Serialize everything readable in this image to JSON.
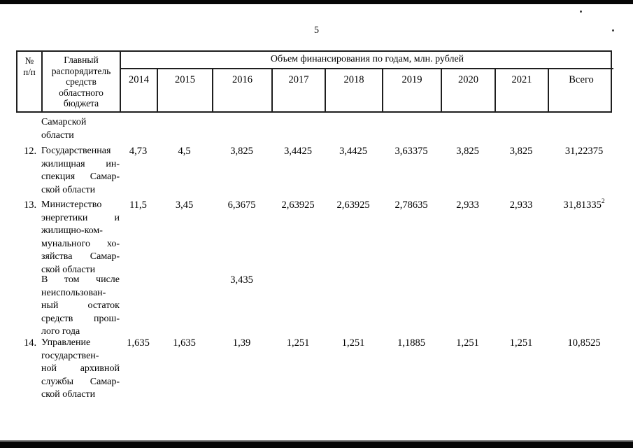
{
  "page": {
    "number": "5"
  },
  "table": {
    "header": {
      "num_lines": [
        "№",
        "п/п"
      ],
      "name_lines": [
        "Главный",
        "распорядитель",
        "средств",
        "областного",
        "бюджета"
      ],
      "span_title": "Объем финансирования по годам, млн. рублей",
      "years": [
        "2014",
        "2015",
        "2016",
        "2017",
        "2018",
        "2019",
        "2020",
        "2021"
      ],
      "total_label": "Всего"
    },
    "rows": [
      {
        "num": "",
        "name_lines": [
          "Самарской",
          "области"
        ],
        "values": [
          "",
          "",
          "",
          "",
          "",
          "",
          "",
          "",
          ""
        ]
      },
      {
        "num": "12.",
        "name_lines": [
          "Государственная",
          "жилищная ин-",
          "спекция Самар-",
          "ской области"
        ],
        "values": [
          "4,73",
          "4,5",
          "3,825",
          "3,4425",
          "3,4425",
          "3,63375",
          "3,825",
          "3,825",
          "31,22375"
        ]
      },
      {
        "num": "13.",
        "name_lines": [
          "Министерство",
          "энергетики и",
          "жилищно-ком-",
          "мунального хо-",
          "зяйства Самар-",
          "ской области"
        ],
        "values": [
          "11,5",
          "3,45",
          "6,3675",
          "2,63925",
          "2,63925",
          "2,78635",
          "2,933",
          "2,933",
          "31,81335"
        ],
        "total_sup": "2"
      },
      {
        "num": "",
        "name_lines": [
          "В том числе",
          "неиспользован-",
          "ный остаток",
          "средств прош-",
          "лого года"
        ],
        "values": [
          "",
          "",
          "3,435",
          "",
          "",
          "",
          "",
          "",
          ""
        ]
      },
      {
        "num": "14.",
        "name_lines": [
          "Управление",
          "государствен-",
          "ной архивной",
          "службы Самар-",
          "ской области"
        ],
        "values": [
          "1,635",
          "1,635",
          "1,39",
          "1,251",
          "1,251",
          "1,1885",
          "1,251",
          "1,251",
          "10,8525"
        ]
      }
    ]
  }
}
